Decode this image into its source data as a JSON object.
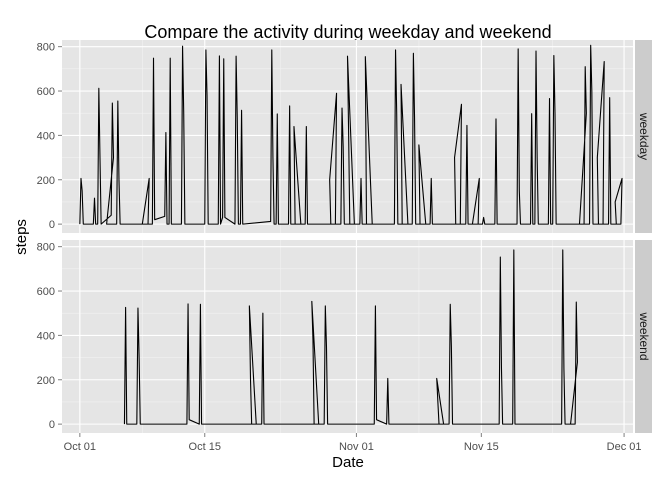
{
  "chart_data": {
    "type": "line",
    "title": "Compare the activity during weekday and weekend",
    "xlabel": "Date",
    "ylabel": "steps",
    "x_ticks": [
      "Oct 01",
      "Oct 15",
      "Nov 01",
      "Nov 15",
      "Dec 01"
    ],
    "y_ticks": [
      0,
      200,
      400,
      600,
      800
    ],
    "ylim": [
      -40,
      830
    ],
    "xlim": [
      "2012-09-29",
      "2012-12-02"
    ],
    "grid": true,
    "legend": "none",
    "colors": {
      "panel_bg": "#E5E5E5",
      "grid_major": "#FFFFFF",
      "grid_minor": "#F2F2F2",
      "strip_bg": "#CCCCCC",
      "line": "#000000"
    },
    "panels": [
      {
        "strip_label": "weekday",
        "points": [
          [
            "2012-10-01",
            0
          ],
          [
            "2012-10-01",
            206
          ],
          [
            "2012-10-01",
            150
          ],
          [
            "2012-10-01",
            0
          ],
          [
            "2012-10-02",
            0
          ],
          [
            "2012-10-02",
            117
          ],
          [
            "2012-10-02",
            0
          ],
          [
            "2012-10-03",
            0
          ],
          [
            "2012-10-03",
            612
          ],
          [
            "2012-10-03",
            300
          ],
          [
            "2012-10-03",
            0
          ],
          [
            "2012-10-04",
            40
          ],
          [
            "2012-10-04",
            546
          ],
          [
            "2012-10-04",
            300
          ],
          [
            "2012-10-04",
            0
          ],
          [
            "2012-10-05",
            0
          ],
          [
            "2012-10-05",
            555
          ],
          [
            "2012-10-05",
            200
          ],
          [
            "2012-10-05",
            0
          ],
          [
            "2012-10-08",
            0
          ],
          [
            "2012-10-08",
            206
          ],
          [
            "2012-10-08",
            0
          ],
          [
            "2012-10-09",
            0
          ],
          [
            "2012-10-09",
            748
          ],
          [
            "2012-10-09",
            20
          ],
          [
            "2012-10-10",
            35
          ],
          [
            "2012-10-10",
            413
          ],
          [
            "2012-10-10",
            0
          ],
          [
            "2012-10-11",
            0
          ],
          [
            "2012-10-11",
            748
          ],
          [
            "2012-10-11",
            0
          ],
          [
            "2012-10-12",
            0
          ],
          [
            "2012-10-12",
            802
          ],
          [
            "2012-10-12",
            500
          ],
          [
            "2012-10-12",
            0
          ],
          [
            "2012-10-15",
            0
          ],
          [
            "2012-10-15",
            785
          ],
          [
            "2012-10-15",
            580
          ],
          [
            "2012-10-15",
            0
          ],
          [
            "2012-10-16",
            0
          ],
          [
            "2012-10-16",
            758
          ],
          [
            "2012-10-16",
            0
          ],
          [
            "2012-10-17",
            30
          ],
          [
            "2012-10-17",
            745
          ],
          [
            "2012-10-17",
            30
          ],
          [
            "2012-10-18",
            0
          ],
          [
            "2012-10-18",
            757
          ],
          [
            "2012-10-18",
            480
          ],
          [
            "2012-10-18",
            0
          ],
          [
            "2012-10-19",
            0
          ],
          [
            "2012-10-19",
            513
          ],
          [
            "2012-10-19",
            0
          ],
          [
            "2012-10-22",
            12
          ],
          [
            "2012-10-22",
            785
          ],
          [
            "2012-10-22",
            300
          ],
          [
            "2012-10-22",
            0
          ],
          [
            "2012-10-23",
            0
          ],
          [
            "2012-10-23",
            497
          ],
          [
            "2012-10-23",
            0
          ],
          [
            "2012-10-24",
            0
          ],
          [
            "2012-10-24",
            533
          ],
          [
            "2012-10-24",
            0
          ],
          [
            "2012-10-25",
            0
          ],
          [
            "2012-10-25",
            440
          ],
          [
            "2012-10-25",
            0
          ],
          [
            "2012-10-26",
            0
          ],
          [
            "2012-10-26",
            440
          ],
          [
            "2012-10-26",
            0
          ],
          [
            "2012-10-29",
            0
          ],
          [
            "2012-10-29",
            590
          ],
          [
            "2012-10-29",
            200
          ],
          [
            "2012-10-29",
            0
          ],
          [
            "2012-10-30",
            0
          ],
          [
            "2012-10-30",
            523
          ],
          [
            "2012-10-30",
            350
          ],
          [
            "2012-10-30",
            0
          ],
          [
            "2012-10-31",
            0
          ],
          [
            "2012-10-31",
            757
          ],
          [
            "2012-10-31",
            400
          ],
          [
            "2012-10-31",
            0
          ],
          [
            "2012-11-01",
            0
          ],
          [
            "2012-11-01",
            206
          ],
          [
            "2012-11-01",
            0
          ],
          [
            "2012-11-02",
            0
          ],
          [
            "2012-11-02",
            755
          ],
          [
            "2012-11-02",
            0
          ],
          [
            "2012-11-05",
            0
          ],
          [
            "2012-11-05",
            785
          ],
          [
            "2012-11-05",
            500
          ],
          [
            "2012-11-05",
            0
          ],
          [
            "2012-11-06",
            0
          ],
          [
            "2012-11-06",
            630
          ],
          [
            "2012-11-06",
            0
          ],
          [
            "2012-11-07",
            0
          ],
          [
            "2012-11-07",
            770
          ],
          [
            "2012-11-07",
            480
          ],
          [
            "2012-11-07",
            0
          ],
          [
            "2012-11-08",
            0
          ],
          [
            "2012-11-08",
            357
          ],
          [
            "2012-11-08",
            0
          ],
          [
            "2012-11-09",
            0
          ],
          [
            "2012-11-09",
            206
          ],
          [
            "2012-11-09",
            0
          ],
          [
            "2012-11-12",
            0
          ],
          [
            "2012-11-12",
            540
          ],
          [
            "2012-11-12",
            300
          ],
          [
            "2012-11-12",
            0
          ],
          [
            "2012-11-13",
            0
          ],
          [
            "2012-11-13",
            445
          ],
          [
            "2012-11-13",
            0
          ],
          [
            "2012-11-14",
            0
          ],
          [
            "2012-11-14",
            206
          ],
          [
            "2012-11-14",
            0
          ],
          [
            "2012-11-15",
            0
          ],
          [
            "2012-11-15",
            30
          ],
          [
            "2012-11-15",
            0
          ],
          [
            "2012-11-16",
            0
          ],
          [
            "2012-11-16",
            474
          ],
          [
            "2012-11-16",
            0
          ],
          [
            "2012-11-19",
            0
          ],
          [
            "2012-11-19",
            790
          ],
          [
            "2012-11-19",
            150
          ],
          [
            "2012-11-19",
            0
          ],
          [
            "2012-11-20",
            0
          ],
          [
            "2012-11-20",
            498
          ],
          [
            "2012-11-20",
            0
          ],
          [
            "2012-11-21",
            0
          ],
          [
            "2012-11-21",
            780
          ],
          [
            "2012-11-21",
            300
          ],
          [
            "2012-11-21",
            0
          ],
          [
            "2012-11-22",
            0
          ],
          [
            "2012-11-22",
            566
          ],
          [
            "2012-11-22",
            0
          ],
          [
            "2012-11-23",
            0
          ],
          [
            "2012-11-23",
            760
          ],
          [
            "2012-11-23",
            500
          ],
          [
            "2012-11-23",
            0
          ],
          [
            "2012-11-26",
            0
          ],
          [
            "2012-11-26",
            710
          ],
          [
            "2012-11-26",
            500
          ],
          [
            "2012-11-26",
            0
          ],
          [
            "2012-11-27",
            0
          ],
          [
            "2012-11-27",
            806
          ],
          [
            "2012-11-27",
            600
          ],
          [
            "2012-11-27",
            0
          ],
          [
            "2012-11-28",
            0
          ],
          [
            "2012-11-28",
            733
          ],
          [
            "2012-11-28",
            300
          ],
          [
            "2012-11-28",
            0
          ],
          [
            "2012-11-29",
            0
          ],
          [
            "2012-11-29",
            570
          ],
          [
            "2012-11-29",
            0
          ],
          [
            "2012-11-30",
            0
          ],
          [
            "2012-11-30",
            206
          ],
          [
            "2012-11-30",
            100
          ],
          [
            "2012-11-30",
            0
          ]
        ]
      },
      {
        "strip_label": "weekend",
        "points": [
          [
            "2012-10-06",
            0
          ],
          [
            "2012-10-06",
            526
          ],
          [
            "2012-10-06",
            0
          ],
          [
            "2012-10-07",
            0
          ],
          [
            "2012-10-07",
            523
          ],
          [
            "2012-10-07",
            300
          ],
          [
            "2012-10-07",
            0
          ],
          [
            "2012-10-13",
            0
          ],
          [
            "2012-10-13",
            542
          ],
          [
            "2012-10-13",
            20
          ],
          [
            "2012-10-14",
            0
          ],
          [
            "2012-10-14",
            540
          ],
          [
            "2012-10-14",
            0
          ],
          [
            "2012-10-20",
            0
          ],
          [
            "2012-10-20",
            533
          ],
          [
            "2012-10-20",
            200
          ],
          [
            "2012-10-20",
            0
          ],
          [
            "2012-10-21",
            0
          ],
          [
            "2012-10-21",
            500
          ],
          [
            "2012-10-21",
            0
          ],
          [
            "2012-10-27",
            0
          ],
          [
            "2012-10-27",
            553
          ],
          [
            "2012-10-27",
            380
          ],
          [
            "2012-10-27",
            0
          ],
          [
            "2012-10-28",
            0
          ],
          [
            "2012-10-28",
            533
          ],
          [
            "2012-10-28",
            350
          ],
          [
            "2012-10-28",
            0
          ],
          [
            "2012-11-03",
            0
          ],
          [
            "2012-11-03",
            533
          ],
          [
            "2012-11-03",
            20
          ],
          [
            "2012-11-04",
            0
          ],
          [
            "2012-11-04",
            206
          ],
          [
            "2012-11-04",
            0
          ],
          [
            "2012-11-10",
            0
          ],
          [
            "2012-11-10",
            206
          ],
          [
            "2012-11-10",
            100
          ],
          [
            "2012-11-10",
            0
          ],
          [
            "2012-11-11",
            0
          ],
          [
            "2012-11-11",
            540
          ],
          [
            "2012-11-11",
            350
          ],
          [
            "2012-11-11",
            0
          ],
          [
            "2012-11-17",
            0
          ],
          [
            "2012-11-17",
            753
          ],
          [
            "2012-11-17",
            250
          ],
          [
            "2012-11-17",
            0
          ],
          [
            "2012-11-18",
            0
          ],
          [
            "2012-11-18",
            785
          ],
          [
            "2012-11-18",
            0
          ],
          [
            "2012-11-24",
            0
          ],
          [
            "2012-11-24",
            785
          ],
          [
            "2012-11-24",
            250
          ],
          [
            "2012-11-24",
            0
          ],
          [
            "2012-11-25",
            0
          ],
          [
            "2012-11-25",
            550
          ],
          [
            "2012-11-25",
            280
          ],
          [
            "2012-11-25",
            0
          ]
        ]
      }
    ]
  }
}
